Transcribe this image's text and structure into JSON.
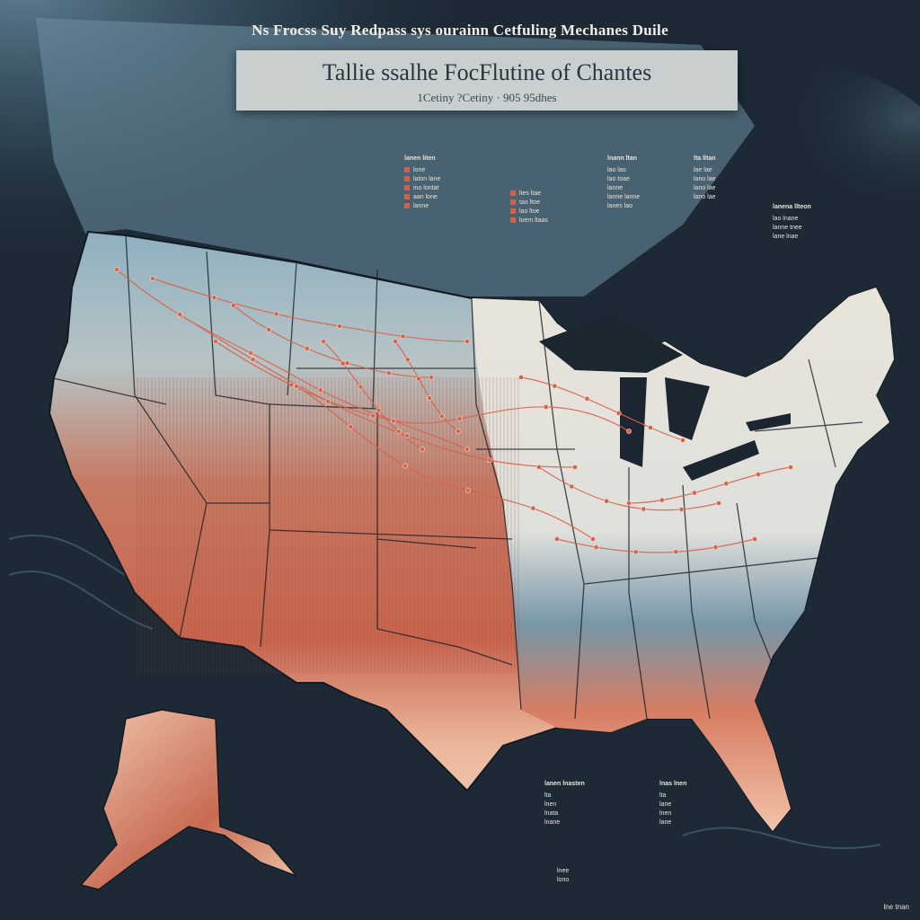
{
  "headline": "Ns Frocss Suy Redpass sys ourainn Cetfuling Mechanes Duile",
  "title_panel": {
    "title": "Tallie ssalhe FocFlutine of Chantes",
    "subtitle": "1Cetiny  ?Cetiny  ·  905 95dhes"
  },
  "legends": [
    {
      "head": "lanen liten",
      "swatch": "#d2614a",
      "rows": [
        "lone",
        "laton lane",
        "ino lontat",
        "aan lone",
        "lanne"
      ]
    },
    {
      "head": "",
      "swatch": "#d2614a",
      "rows": [
        "ltes ltae",
        "tao ltoe",
        "lao ltoe",
        "loem ltaas"
      ]
    },
    {
      "head": "lnann ltan",
      "swatch": "",
      "rows": [
        "lao lao",
        "lao toae",
        "lanne",
        "lanne lanne",
        "lanes lao"
      ]
    },
    {
      "head": "lta lltan",
      "swatch": "",
      "rows": [
        "lae lae",
        "lano lae",
        "lano lae",
        "lano lae"
      ]
    },
    {
      "head": "lanena llteon",
      "swatch": "",
      "rows": [
        "lao lnane",
        "lanne tnee",
        "lane lnae"
      ]
    },
    {
      "head": "lanen lnasten",
      "swatch": "",
      "rows": [
        "lta",
        "lnen",
        "lnata",
        "lnane"
      ]
    },
    {
      "head": "lnas lnen",
      "swatch": "",
      "rows": [
        "lta",
        "lane",
        "lnen",
        "lane"
      ]
    },
    {
      "head": "",
      "swatch": "",
      "rows": [
        "lnee",
        "lono"
      ]
    }
  ],
  "corner_note": "lne  tnan",
  "colors": {
    "ocean": "#1d2a36",
    "ocean_light": "#5a7b8e",
    "land_light": "#e6e2d8",
    "land_blue": "#7fa0b2",
    "land_warm": "#c3654f",
    "land_peach": "#f2c6ab",
    "route": "#d9624b",
    "border": "#1a2026"
  }
}
